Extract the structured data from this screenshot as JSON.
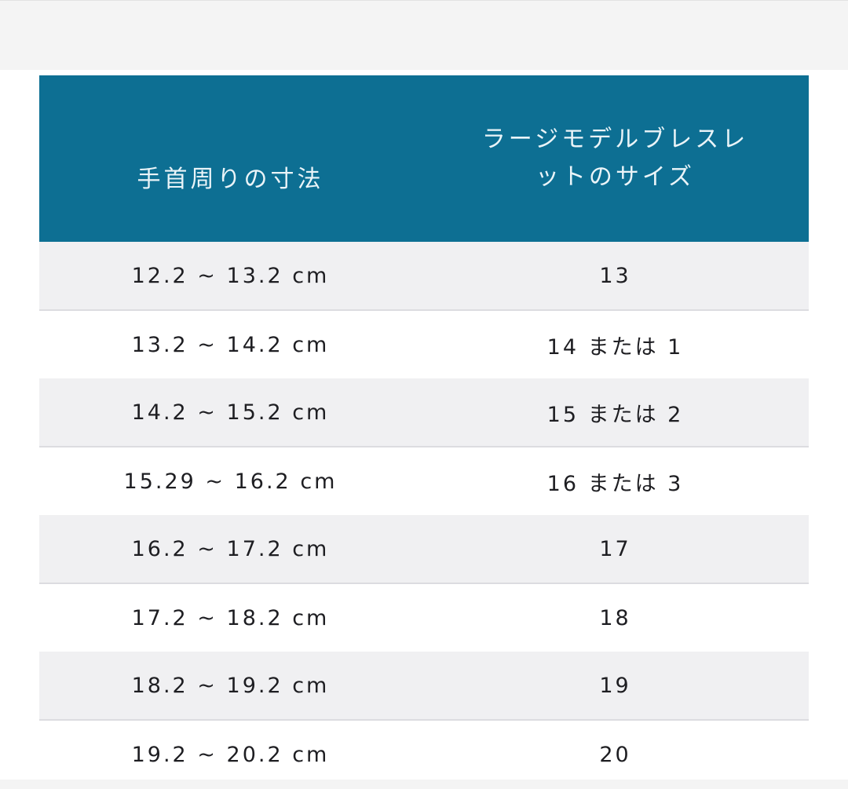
{
  "table": {
    "headers": [
      "手首周りの寸法",
      [
        "ラージモデルブレスレ",
        "ットのサイズ"
      ]
    ],
    "rows": [
      [
        "12.2 ~ 13.2 cm",
        "13"
      ],
      [
        "13.2 ~ 14.2 cm",
        "14 または 1"
      ],
      [
        "14.2 ~ 15.2 cm",
        "15 または 2"
      ],
      [
        "15.29 ~ 16.2 cm",
        "16 または 3"
      ],
      [
        "16.2 ~ 17.2 cm",
        "17"
      ],
      [
        "17.2 ~ 18.2 cm",
        "18"
      ],
      [
        "18.2 ~ 19.2 cm",
        "19"
      ],
      [
        "19.2 ~ 20.2 cm",
        "20"
      ]
    ]
  },
  "colors": {
    "header_bg": "#0d6f93",
    "stripe_bg": "#f0f0f2"
  }
}
